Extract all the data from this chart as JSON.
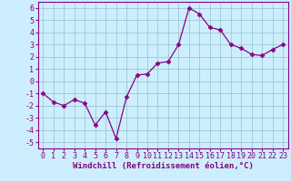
{
  "x": [
    0,
    1,
    2,
    3,
    4,
    5,
    6,
    7,
    8,
    9,
    10,
    11,
    12,
    13,
    14,
    15,
    16,
    17,
    18,
    19,
    20,
    21,
    22,
    23
  ],
  "y": [
    -1.0,
    -1.7,
    -2.0,
    -1.5,
    -1.8,
    -3.6,
    -2.5,
    -4.7,
    -1.3,
    0.5,
    0.6,
    1.5,
    1.6,
    3.0,
    6.0,
    5.5,
    4.4,
    4.2,
    3.0,
    2.7,
    2.2,
    2.1,
    2.6,
    3.0
  ],
  "line_color": "#880088",
  "marker": "D",
  "marker_size": 2.5,
  "bg_color": "#cceeff",
  "grid_color": "#99cccc",
  "xlabel": "Windchill (Refroidissement éolien,°C)",
  "xlim": [
    -0.5,
    23.5
  ],
  "ylim": [
    -5.5,
    6.5
  ],
  "yticks": [
    -5,
    -4,
    -3,
    -2,
    -1,
    0,
    1,
    2,
    3,
    4,
    5,
    6
  ],
  "xticks": [
    0,
    1,
    2,
    3,
    4,
    5,
    6,
    7,
    8,
    9,
    10,
    11,
    12,
    13,
    14,
    15,
    16,
    17,
    18,
    19,
    20,
    21,
    22,
    23
  ],
  "xlabel_fontsize": 6.5,
  "tick_fontsize": 6.0,
  "spine_color": "#880088",
  "linewidth": 0.9
}
